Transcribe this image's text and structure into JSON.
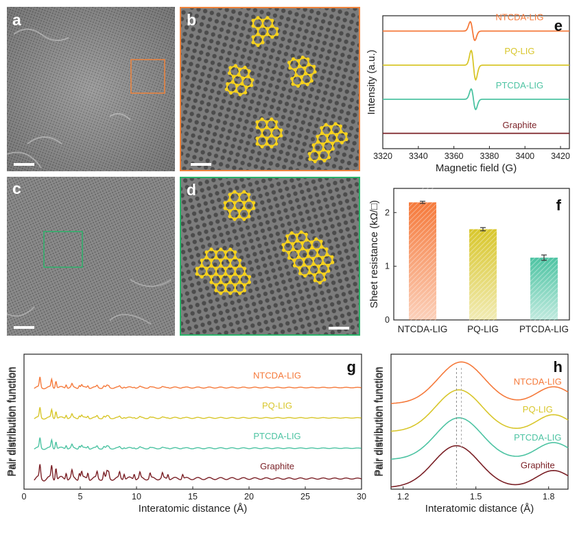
{
  "panel_labels": {
    "a": "a",
    "b": "b",
    "c": "c",
    "d": "d",
    "e": "e",
    "f": "f",
    "g": "g",
    "h": "h"
  },
  "colors": {
    "ntcda": "#f5793a",
    "pq": "#d8c62a",
    "ptcda": "#4cc3a2",
    "graphite": "#7a1f25",
    "box_orange": "#f0843c",
    "box_green": "#2bb36a",
    "molecule": "#f6d21e"
  },
  "chart_data": [
    {
      "id": "e",
      "type": "line",
      "xlabel": "Magnetic field (G)",
      "ylabel": "Intensity (a.u.)",
      "xlim": [
        3320,
        3425
      ],
      "xticks": [
        3320,
        3340,
        3360,
        3380,
        3400,
        3420
      ],
      "series": [
        {
          "name": "NTCDA-LIG",
          "offset": 3.0,
          "center": 3370.5,
          "amp": 0.32,
          "width": 1.8
        },
        {
          "name": "PQ-LIG",
          "offset": 2.0,
          "center": 3371,
          "amp": 0.5,
          "width": 1.8
        },
        {
          "name": "PTCDA-LIG",
          "offset": 1.0,
          "center": 3371,
          "amp": 0.35,
          "width": 1.8
        },
        {
          "name": "Graphite",
          "offset": 0.0,
          "center": 3371,
          "amp": 0.0,
          "width": 1.8
        }
      ]
    },
    {
      "id": "f",
      "type": "bar",
      "ylabel": "Sheet resistance (kΩ/□)",
      "categories": [
        "NTCDA-LIG",
        "PQ-LIG",
        "PTCDA-LIG"
      ],
      "values": [
        2.19,
        1.69,
        1.16
      ],
      "errors": [
        0.02,
        0.03,
        0.05
      ],
      "ylim": [
        0,
        2.45
      ],
      "yticks": [
        0,
        1,
        2
      ]
    },
    {
      "id": "g",
      "type": "line",
      "xlabel": "Interatomic distance (Å)",
      "ylabel": "Pair distribution function",
      "xlim": [
        0,
        30
      ],
      "xticks": [
        0,
        5,
        10,
        15,
        20,
        25,
        30
      ],
      "series": [
        {
          "name": "NTCDA-LIG",
          "offset": 3.0
        },
        {
          "name": "PQ-LIG",
          "offset": 2.0
        },
        {
          "name": "PTCDA-LIG",
          "offset": 1.0
        },
        {
          "name": "Graphite",
          "offset": 0.0
        }
      ]
    },
    {
      "id": "h",
      "type": "line",
      "xlabel": "Interatomic distance (Å)",
      "ylabel": "Pair distribution function",
      "xlim": [
        1.15,
        1.88
      ],
      "xticks": [
        1.2,
        1.5,
        1.8
      ],
      "xtick_labels": [
        "1.2",
        "1.5",
        "1.8"
      ],
      "series": [
        {
          "name": "NTCDA-LIG",
          "offset": 3.0,
          "peak": 1.44
        },
        {
          "name": "PQ-LIG",
          "offset": 2.0,
          "peak": 1.43
        },
        {
          "name": "PTCDA-LIG",
          "offset": 1.0,
          "peak": 1.43
        },
        {
          "name": "Graphite",
          "offset": 0.0,
          "peak": 1.42
        }
      ]
    }
  ]
}
